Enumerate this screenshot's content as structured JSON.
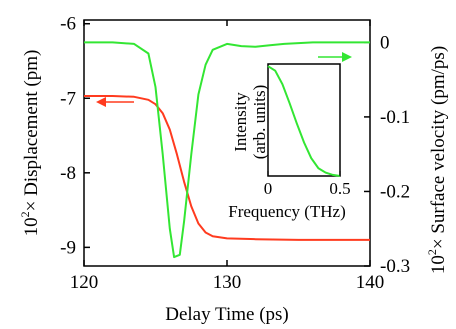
{
  "chart_data": {
    "type": "line",
    "xlabel": "Delay Time (ps)",
    "ylabel_left_prefix": "10",
    "ylabel_left_exp": "2",
    "ylabel_left_rest": "× Displacement (pm)",
    "ylabel_right_prefix": "10",
    "ylabel_right_exp": "2",
    "ylabel_right_rest": "× Surface velocity (pm/ps)",
    "xlim": [
      120,
      140
    ],
    "ylim_left": [
      -9.25,
      -5.95
    ],
    "ylim_right": [
      -0.3,
      0.03
    ],
    "x_ticks": [
      120,
      130,
      140
    ],
    "x_tick_labels": [
      "120",
      "130",
      "140"
    ],
    "y_left_ticks": [
      -9,
      -8,
      -7,
      -6
    ],
    "y_left_tick_labels": [
      "-9",
      "-8",
      "-7",
      "-6"
    ],
    "y_right_ticks": [
      -0.3,
      -0.2,
      -0.1,
      0
    ],
    "y_right_tick_labels": [
      "-0.3",
      "-0.2",
      "-0.1",
      "0"
    ],
    "grid": false,
    "series": [
      {
        "axis": "left",
        "color": "#ff3b1f",
        "x": [
          120,
          122,
          123.5,
          124.5,
          125,
          125.5,
          126,
          126.5,
          127,
          127.5,
          128,
          128.5,
          129,
          130,
          132,
          135,
          140
        ],
        "y": [
          -6.97,
          -6.97,
          -6.98,
          -7.02,
          -7.08,
          -7.2,
          -7.42,
          -7.75,
          -8.12,
          -8.45,
          -8.68,
          -8.8,
          -8.85,
          -8.88,
          -8.89,
          -8.9,
          -8.9
        ]
      },
      {
        "axis": "right",
        "color": "#33e633",
        "x": [
          120,
          122,
          123.5,
          124.5,
          125,
          125.5,
          126,
          126.3,
          126.7,
          127,
          127.5,
          128,
          128.5,
          129,
          130,
          131,
          132,
          133,
          134,
          136,
          140
        ],
        "y": [
          0,
          0,
          -0.002,
          -0.015,
          -0.06,
          -0.15,
          -0.25,
          -0.288,
          -0.285,
          -0.24,
          -0.15,
          -0.07,
          -0.03,
          -0.01,
          -0.002,
          -0.005,
          -0.006,
          -0.004,
          -0.002,
          0,
          0
        ]
      }
    ],
    "arrows": [
      {
        "direction": "left",
        "color": "#ff3b1f"
      },
      {
        "direction": "right",
        "color": "#33e633"
      }
    ],
    "inset": {
      "type": "line",
      "xlabel": "Frequency (THz)",
      "ylabel_line1": "Intensity",
      "ylabel_line2": "(arb. units)",
      "xlim": [
        0,
        0.5
      ],
      "x_ticks": [
        0,
        0.5
      ],
      "x_tick_labels": [
        "0",
        "0.5"
      ],
      "series": [
        {
          "color": "#33e633",
          "x": [
            0,
            0.05,
            0.1,
            0.15,
            0.2,
            0.25,
            0.3,
            0.35,
            0.4,
            0.45,
            0.5
          ],
          "y": [
            0.98,
            0.94,
            0.82,
            0.65,
            0.47,
            0.3,
            0.16,
            0.07,
            0.03,
            0.01,
            0.0
          ]
        }
      ]
    }
  }
}
